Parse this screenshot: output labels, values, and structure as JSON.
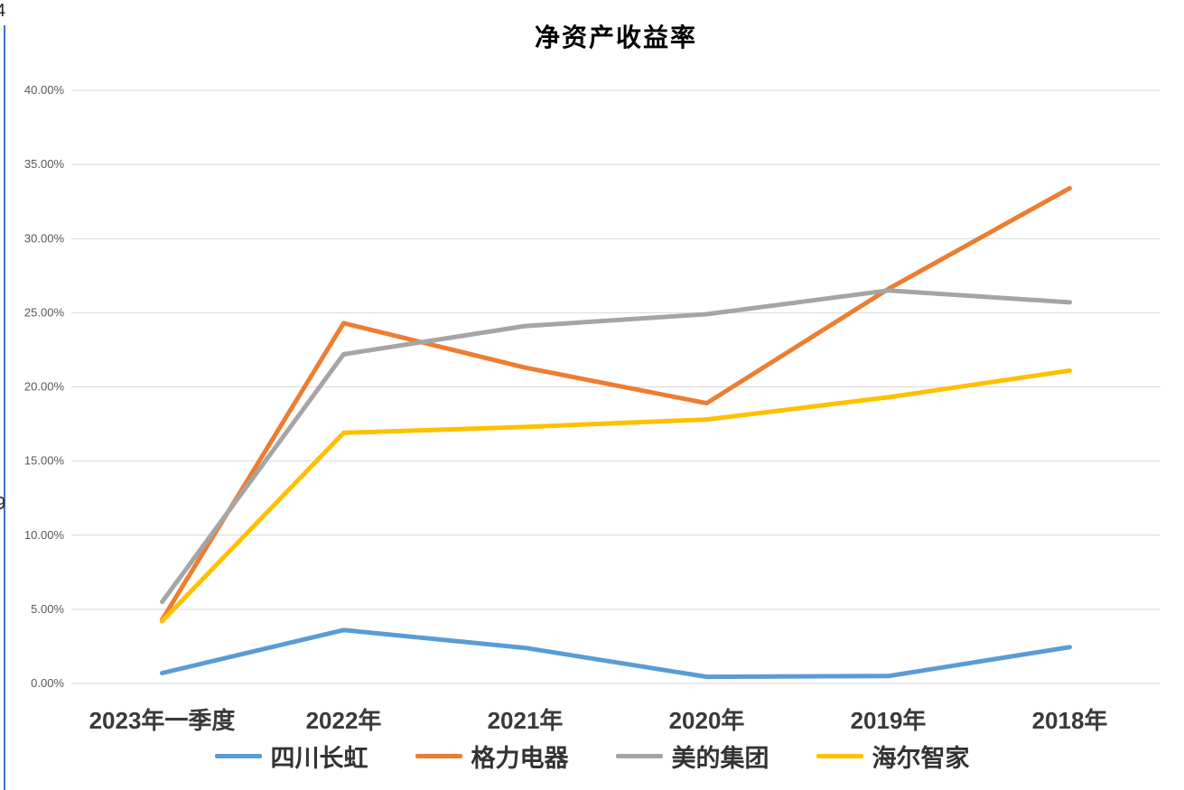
{
  "artifacts": {
    "top_left_clipped_text": "4",
    "mid_left_clipped_text": "9",
    "left_edge_line_color": "#4472C4"
  },
  "chart_data": {
    "type": "line",
    "title": "净资产收益率",
    "categories": [
      "2023年一季度",
      "2022年",
      "2021年",
      "2020年",
      "2019年",
      "2018年"
    ],
    "series": [
      {
        "name": "四川长虹",
        "color": "#5B9BD5",
        "values": [
          0.7,
          3.6,
          2.4,
          0.45,
          0.5,
          2.45
        ]
      },
      {
        "name": "格力电器",
        "color": "#ED7D31",
        "values": [
          4.3,
          24.3,
          21.3,
          18.9,
          26.6,
          33.4
        ]
      },
      {
        "name": "美的集团",
        "color": "#A5A5A5",
        "values": [
          5.5,
          22.2,
          24.1,
          24.9,
          26.5,
          25.7
        ]
      },
      {
        "name": "海尔智家",
        "color": "#FFC000",
        "values": [
          4.2,
          16.9,
          17.3,
          17.8,
          19.3,
          21.1
        ]
      }
    ],
    "ylim": [
      0,
      40
    ],
    "ytick_step": 5,
    "ytick_labels": [
      "0.00%",
      "5.00%",
      "10.00%",
      "15.00%",
      "20.00%",
      "25.00%",
      "30.00%",
      "35.00%",
      "40.00%"
    ],
    "grid": "horizontal",
    "gridline_color": "#D9D9D9",
    "axis_label_color": "#595959",
    "category_label_color": "#3A3A3A",
    "legend_position": "bottom",
    "line_width": 5
  }
}
